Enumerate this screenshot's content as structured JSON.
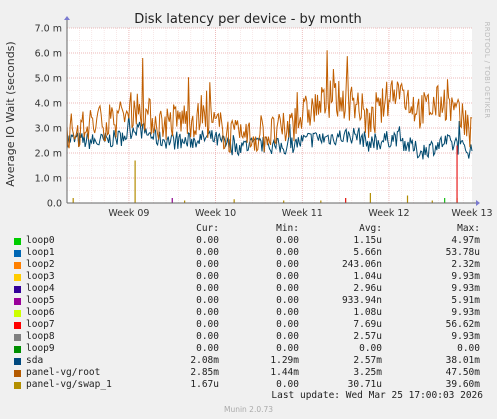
{
  "chart_data": {
    "type": "line",
    "title": "Disk latency per device - by month",
    "ylabel": "Average IO Wait (seconds)",
    "side_label": "RRDTOOL / TOBI OETIKER",
    "ylim": [
      0,
      7.0
    ],
    "y_ticks": [
      {
        "value": 0,
        "label": "0.0"
      },
      {
        "value": 1.0,
        "label": "1.0 m"
      },
      {
        "value": 2.0,
        "label": "2.0 m"
      },
      {
        "value": 3.0,
        "label": "3.0 m"
      },
      {
        "value": 4.0,
        "label": "4.0 m"
      },
      {
        "value": 5.0,
        "label": "5.0 m"
      },
      {
        "value": 6.0,
        "label": "6.0 m"
      },
      {
        "value": 7.0,
        "label": "7.0 m"
      }
    ],
    "y_unit": "ms",
    "x_range": [
      "2026-02-21",
      "2026-03-25"
    ],
    "x_ticks": [
      {
        "date": "2026-02-26",
        "label": "Week 09"
      },
      {
        "date": "2026-03-05",
        "label": "Week 10"
      },
      {
        "date": "2026-03-12",
        "label": "Week 11"
      },
      {
        "date": "2026-03-19",
        "label": "Week 12"
      },
      {
        "date": "2026-03-26",
        "label": "Week 13"
      }
    ],
    "grid": true,
    "series": [
      {
        "name": "sda",
        "color": "#00496e",
        "style": "line",
        "points": [
          [
            "2026-02-21",
            2.5
          ],
          [
            "2026-02-23",
            2.4
          ],
          [
            "2026-02-25",
            2.6
          ],
          [
            "2026-02-26",
            3.0
          ],
          [
            "2026-02-28",
            2.5
          ],
          [
            "2026-03-02",
            2.4
          ],
          [
            "2026-03-04",
            2.6
          ],
          [
            "2026-03-06",
            2.2
          ],
          [
            "2026-03-08",
            2.3
          ],
          [
            "2026-03-10",
            2.2
          ],
          [
            "2026-03-12",
            2.5
          ],
          [
            "2026-03-14",
            2.6
          ],
          [
            "2026-03-16",
            2.7
          ],
          [
            "2026-03-17",
            2.3
          ],
          [
            "2026-03-19",
            2.6
          ],
          [
            "2026-03-21",
            2.0
          ],
          [
            "2026-03-23",
            2.4
          ],
          [
            "2026-03-25",
            2.08
          ]
        ]
      },
      {
        "name": "panel-vg/root",
        "color": "#c05e00",
        "style": "line",
        "points": [
          [
            "2026-02-21",
            2.8
          ],
          [
            "2026-02-23",
            3.1
          ],
          [
            "2026-02-25",
            3.3
          ],
          [
            "2026-02-26",
            3.8
          ],
          [
            "2026-02-28",
            3.1
          ],
          [
            "2026-03-02",
            3.3
          ],
          [
            "2026-03-04",
            3.2
          ],
          [
            "2026-03-06",
            2.5
          ],
          [
            "2026-03-08",
            2.6
          ],
          [
            "2026-03-10",
            2.8
          ],
          [
            "2026-03-12",
            3.6
          ],
          [
            "2026-03-14",
            4.1
          ],
          [
            "2026-03-16",
            3.9
          ],
          [
            "2026-03-17",
            3.0
          ],
          [
            "2026-03-19",
            4.6
          ],
          [
            "2026-03-21",
            3.6
          ],
          [
            "2026-03-23",
            4.0
          ],
          [
            "2026-03-25",
            2.85
          ]
        ]
      },
      {
        "name": "panel-vg/swap_1",
        "color": "#b38c00",
        "style": "spikes",
        "points": [
          [
            "2026-02-21",
            0.2
          ],
          [
            "2026-02-26",
            1.7
          ],
          [
            "2026-03-02",
            0.1
          ],
          [
            "2026-03-06",
            0.15
          ],
          [
            "2026-03-10",
            0.1
          ],
          [
            "2026-03-13",
            0.1
          ],
          [
            "2026-03-15",
            0.2
          ],
          [
            "2026-03-17",
            0.4
          ],
          [
            "2026-03-20",
            0.3
          ],
          [
            "2026-03-22",
            0.1
          ],
          [
            "2026-03-24",
            0.2
          ]
        ]
      },
      {
        "name": "loop7",
        "color": "#e81c1c",
        "style": "spikes",
        "points": [
          [
            "2026-03-15",
            0.2
          ],
          [
            "2026-03-24",
            2.3
          ]
        ]
      },
      {
        "name": "loop5",
        "color": "#8c008c",
        "style": "spikes",
        "points": [
          [
            "2026-03-01",
            0.2
          ]
        ]
      },
      {
        "name": "loop0",
        "color": "#13bf13",
        "style": "spikes",
        "points": [
          [
            "2026-03-23",
            0.2
          ]
        ]
      }
    ],
    "legend": {
      "headers": {
        "cur": "Cur:",
        "min": "Min:",
        "avg": "Avg:",
        "max": "Max:"
      },
      "rows": [
        {
          "name": "loop0",
          "color": "#00cc00",
          "cur": "0.00",
          "min": "0.00",
          "avg": "1.15u",
          "max": "4.97m"
        },
        {
          "name": "loop1",
          "color": "#0066b3",
          "cur": "0.00",
          "min": "0.00",
          "avg": "5.66n",
          "max": "53.78u"
        },
        {
          "name": "loop2",
          "color": "#ff8000",
          "cur": "0.00",
          "min": "0.00",
          "avg": "243.06n",
          "max": "2.32m"
        },
        {
          "name": "loop3",
          "color": "#ffcc00",
          "cur": "0.00",
          "min": "0.00",
          "avg": "1.04u",
          "max": "9.93m"
        },
        {
          "name": "loop4",
          "color": "#330099",
          "cur": "0.00",
          "min": "0.00",
          "avg": "2.96u",
          "max": "9.93m"
        },
        {
          "name": "loop5",
          "color": "#990099",
          "cur": "0.00",
          "min": "0.00",
          "avg": "933.94n",
          "max": "5.91m"
        },
        {
          "name": "loop6",
          "color": "#ccff00",
          "cur": "0.00",
          "min": "0.00",
          "avg": "1.08u",
          "max": "9.93m"
        },
        {
          "name": "loop7",
          "color": "#ff0000",
          "cur": "0.00",
          "min": "0.00",
          "avg": "7.69u",
          "max": "56.62m"
        },
        {
          "name": "loop8",
          "color": "#808080",
          "cur": "0.00",
          "min": "0.00",
          "avg": "2.57u",
          "max": "9.93m"
        },
        {
          "name": "loop9",
          "color": "#008f00",
          "cur": "0.00",
          "min": "0.00",
          "avg": "0.00",
          "max": "0.00"
        },
        {
          "name": "sda",
          "color": "#00487d",
          "cur": "2.08m",
          "min": "1.29m",
          "avg": "2.57m",
          "max": "38.01m"
        },
        {
          "name": "panel-vg/root",
          "color": "#b35a00",
          "cur": "2.85m",
          "min": "1.44m",
          "avg": "3.25m",
          "max": "47.50m"
        },
        {
          "name": "panel-vg/swap_1",
          "color": "#b38f00",
          "cur": "1.67u",
          "min": "0.00",
          "avg": "30.71u",
          "max": "39.60m"
        }
      ]
    },
    "last_update": "Last update:  Wed Mar 25 17:00:03 2026",
    "footer": "Munin 2.0.73"
  }
}
